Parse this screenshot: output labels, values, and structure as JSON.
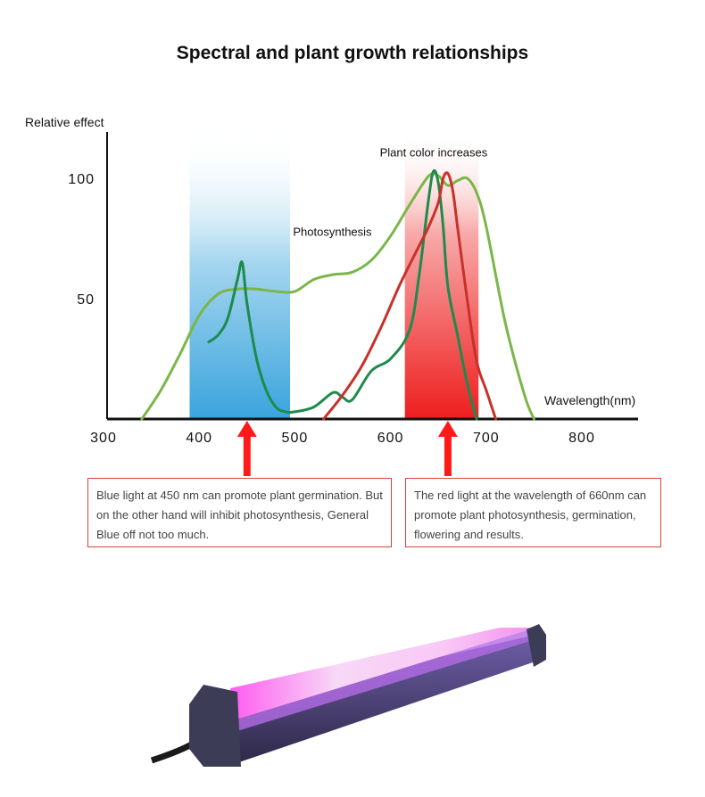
{
  "page": {
    "title": "Spectral and plant growth relationships"
  },
  "notes": {
    "blue": "Blue light at 450 nm can promote plant germination. But on the other hand will inhibit photosynthesis, General Blue off not too much.",
    "red": "The red light at the wavelength of 660nm can promote plant photosynthesis, germination, flowering and results."
  },
  "colors": {
    "photosynthesis_curve": "#7ab648",
    "chlorophyll_curve": "#1e8a4c",
    "red_curve": "#c8312a",
    "blue_band": "#4fb0e0",
    "red_band": "#ee2b2b",
    "arrow": "#ff1a1a",
    "axis": "#111111"
  },
  "chart_data": {
    "type": "line",
    "xlabel": "Wavelength(nm)",
    "ylabel": "Relative effect",
    "xlim": [
      290,
      840
    ],
    "ylim": [
      0,
      120
    ],
    "xticks": [
      300,
      400,
      500,
      600,
      700,
      800
    ],
    "yticks": [
      50,
      100
    ],
    "bands": [
      {
        "color": "blue",
        "from": 390,
        "to": 495
      },
      {
        "color": "red",
        "from": 615,
        "to": 692
      }
    ],
    "arrows_at": [
      450,
      660
    ],
    "annotations": [
      {
        "text": "Photosynthesis",
        "x": 500,
        "y": 78
      },
      {
        "text": "Plant color increases",
        "x": 600,
        "y": 111
      }
    ],
    "series": [
      {
        "color_key": "photosynthesis_curve",
        "x": [
          340,
          360,
          380,
          400,
          420,
          440,
          460,
          480,
          500,
          520,
          540,
          560,
          580,
          600,
          620,
          640,
          650,
          660,
          670,
          680,
          690,
          700,
          720,
          740,
          750
        ],
        "y": [
          0,
          12,
          27,
          43,
          52,
          54,
          54,
          53,
          53,
          58,
          60,
          61,
          66,
          76,
          89,
          101,
          101,
          97,
          99,
          100,
          94,
          80,
          40,
          10,
          0
        ]
      },
      {
        "color_key": "chlorophyll_curve",
        "x": [
          410,
          420,
          430,
          440,
          445,
          450,
          460,
          470,
          480,
          490,
          500,
          520,
          540,
          550,
          560,
          580,
          600,
          620,
          630,
          640,
          645,
          650,
          655,
          660,
          670,
          680,
          690
        ],
        "y": [
          32,
          35,
          42,
          58,
          65,
          48,
          25,
          12,
          5,
          3,
          3,
          5,
          11,
          9,
          8,
          20,
          25,
          37,
          60,
          92,
          103,
          98,
          80,
          55,
          35,
          15,
          0
        ]
      },
      {
        "color_key": "red_curve",
        "x": [
          530,
          550,
          570,
          590,
          610,
          630,
          640,
          650,
          655,
          660,
          665,
          670,
          680,
          690,
          700,
          710
        ],
        "y": [
          0,
          10,
          22,
          38,
          56,
          72,
          80,
          90,
          100,
          102,
          95,
          80,
          50,
          24,
          12,
          0
        ]
      }
    ]
  }
}
